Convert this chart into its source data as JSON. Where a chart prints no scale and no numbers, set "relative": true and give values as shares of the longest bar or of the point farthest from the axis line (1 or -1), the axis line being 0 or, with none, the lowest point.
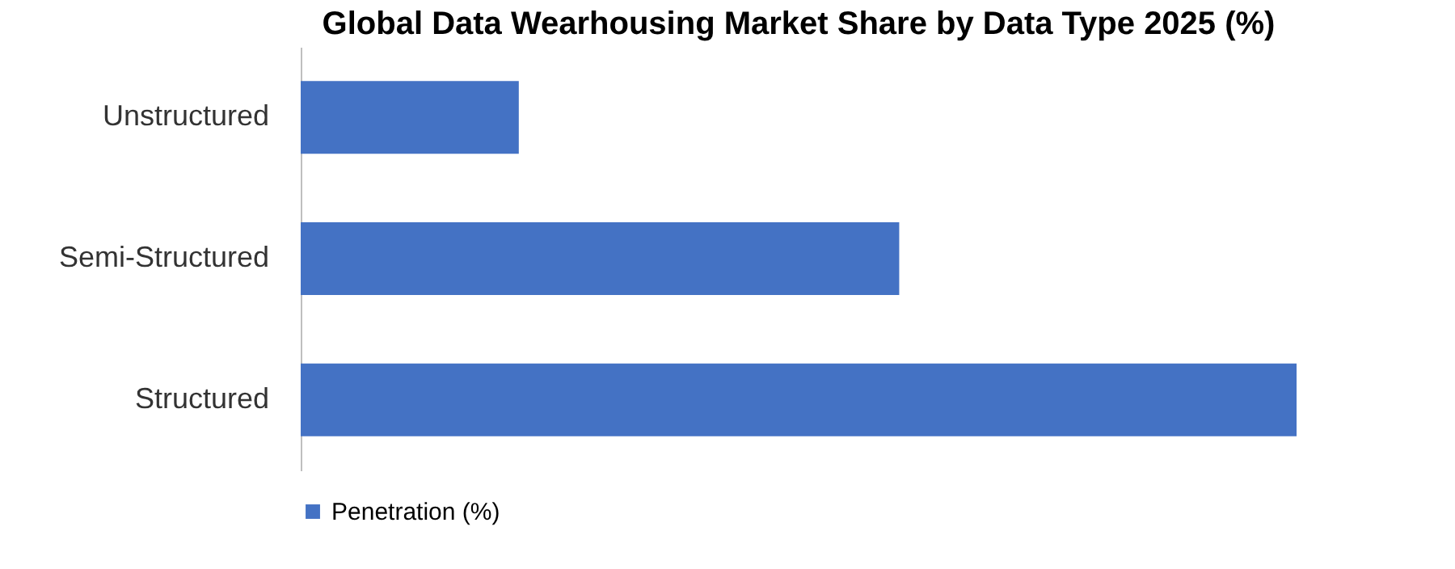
{
  "chart_data": {
    "type": "bar",
    "orientation": "horizontal",
    "relative": true,
    "title": "Global Data Wearhousing Market Share by Data Type 2025 (%)",
    "categories": [
      "Unstructured",
      "Semi-Structured",
      "Structured"
    ],
    "series": [
      {
        "name": "Penetration (%)",
        "color": "#4472c4",
        "values": [
          0.219,
          0.601,
          1
        ]
      }
    ],
    "legend": "bottom"
  }
}
